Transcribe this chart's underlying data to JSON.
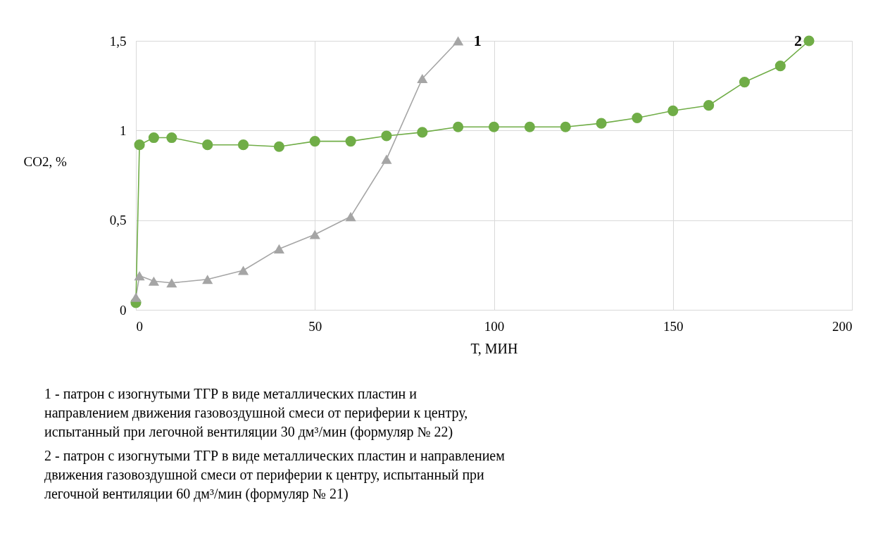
{
  "chart_data": {
    "type": "line",
    "xlabel": "Т, МИН",
    "ylabel": "СО2, %",
    "xlim": [
      0,
      200
    ],
    "xticks": [
      0,
      50,
      100,
      150,
      200
    ],
    "ylim": [
      0,
      1.5
    ],
    "yticks": [
      0,
      {
        "value": 0.5,
        "label": "0,5"
      },
      1,
      {
        "value": 1.5,
        "label": "1,5"
      }
    ],
    "grid": true,
    "legend": false,
    "line_style": "solid",
    "series": [
      {
        "name": "1",
        "color": "#a5a5a5",
        "marker": "triangle",
        "x": [
          0,
          1,
          5,
          10,
          20,
          30,
          40,
          50,
          60,
          70,
          80,
          90
        ],
        "values": [
          0.07,
          0.19,
          0.16,
          0.15,
          0.17,
          0.22,
          0.34,
          0.42,
          0.52,
          0.84,
          1.29,
          1.5
        ]
      },
      {
        "name": "2",
        "color": "#70ad47",
        "marker": "circle",
        "x": [
          0,
          1,
          5,
          10,
          20,
          30,
          40,
          50,
          60,
          70,
          80,
          90,
          100,
          110,
          120,
          130,
          140,
          150,
          160,
          170,
          180,
          188
        ],
        "values": [
          0.04,
          0.92,
          0.96,
          0.96,
          0.92,
          0.92,
          0.91,
          0.94,
          0.94,
          0.97,
          0.99,
          1.02,
          1.02,
          1.02,
          1.02,
          1.04,
          1.07,
          1.11,
          1.14,
          1.27,
          1.36,
          1.5
        ]
      }
    ],
    "annotations": [
      "1 - патрон с изогнутыми ТГР в виде металлических пластин и\nнаправлением движения газовоздушной смеси от периферии к центру,\nиспытанный при легочной вентиляции 30 дм³/мин (формуляр № 22)",
      "2 - патрон с изогнутыми ТГР в виде металлических пластин и направлением\nдвижения газовоздушной смеси от периферии к центру, испытанный при\nлегочной вентиляции 60 дм³/мин (формуляр № 21)"
    ]
  }
}
